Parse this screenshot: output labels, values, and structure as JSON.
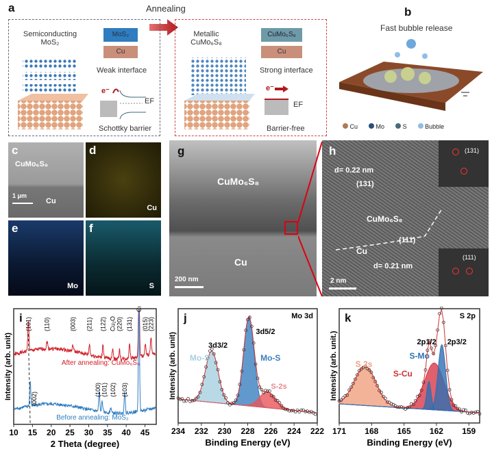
{
  "panel_a": {
    "label": "a",
    "arrow_text": "Annealing",
    "left": {
      "title_line1": "Semiconducting",
      "title_line2": "MoS₂",
      "layer_top": "MoS₂",
      "layer_bottom": "Cu",
      "interface": "Weak interface",
      "electron": "e⁻",
      "fermi": "EF",
      "barrier": "Schottky barrier"
    },
    "right": {
      "title_line1": "Metallic",
      "title_line2": "CuMo₆S₈",
      "layer_top": "CuMo₆S₈",
      "layer_bottom": "Cu",
      "interface": "Strong interface",
      "electron": "e⁻",
      "fermi": "EF",
      "barrier": "Barrier-free"
    },
    "colors": {
      "mos2": "#2f7dc0",
      "cu": "#c98f7a",
      "arrow": "#b0191e"
    }
  },
  "panel_b": {
    "label": "b",
    "title": "Fast bubble release",
    "legend": [
      "Cu",
      "Mo",
      "S",
      "Bubble"
    ]
  },
  "panel_c": {
    "label": "c",
    "text1": "CuMo₆S₈",
    "text2": "Cu",
    "scale": "1 μm"
  },
  "panel_d": {
    "label": "d",
    "element": "Cu"
  },
  "panel_e": {
    "label": "e",
    "element": "Mo"
  },
  "panel_f": {
    "label": "f",
    "element": "S"
  },
  "panel_g": {
    "label": "g",
    "text1": "CuMo₆S₈",
    "text2": "Cu",
    "scale": "200 nm"
  },
  "panel_h": {
    "label": "h",
    "d1": "d= 0.22 nm",
    "plane1": "(131)",
    "phase": "CuMo₆S₈",
    "plane2": "(111)",
    "cu": "Cu",
    "d2": "d= 0.21 nm",
    "fft1": "(131)",
    "fft2": "(111)",
    "scale": "2 nm"
  },
  "chart_data": [
    {
      "panel": "i",
      "type": "line",
      "xlabel": "2 Theta (degree)",
      "ylabel": "Intensity (arb. unit)",
      "xlim": [
        10,
        48
      ],
      "xticks": [
        10,
        15,
        20,
        25,
        30,
        35,
        40,
        45
      ],
      "series": [
        {
          "name": "After annealing: CuMo₆S₈",
          "color": "#d0202a",
          "peaks": [
            [
              13.9,
              1.0
            ],
            [
              18.9,
              0.25
            ],
            [
              25.8,
              0.2
            ],
            [
              30.2,
              0.35
            ],
            [
              33.8,
              0.45
            ],
            [
              36.4,
              0.35
            ],
            [
              38.2,
              0.3
            ],
            [
              40.9,
              0.5
            ],
            [
              43.4,
              2.2
            ],
            [
              45.1,
              0.35
            ],
            [
              46.6,
              0.55
            ]
          ]
        },
        {
          "name": "Before annealing: MoS₂",
          "color": "#2f7dc0",
          "peaks": [
            [
              14.4,
              0.9
            ],
            [
              32.8,
              0.7
            ],
            [
              33.6,
              0.4
            ],
            [
              35.9,
              0.2
            ],
            [
              39.6,
              0.8
            ],
            [
              43.4,
              4.0
            ]
          ]
        }
      ],
      "annotations_after": [
        [
          "(101)",
          13.9
        ],
        [
          "(110)",
          18.9
        ],
        [
          "(003)",
          25.8
        ],
        [
          "(211)",
          30.2
        ],
        [
          "(122)",
          33.8
        ],
        [
          "Cu₂O",
          36.4
        ],
        [
          "(220)",
          38.2
        ],
        [
          "(131)",
          40.9
        ],
        [
          "Cu",
          43.4
        ],
        [
          "(015)",
          45.1
        ],
        [
          "(223)",
          46.6
        ]
      ],
      "annotations_before": [
        [
          "(002)",
          15.5
        ],
        [
          "(100)",
          32.5
        ],
        [
          "(101)",
          34.2
        ],
        [
          "(102)",
          36.5
        ],
        [
          "(103)",
          39.6
        ]
      ]
    },
    {
      "panel": "j",
      "type": "area",
      "title": "Mo 3d",
      "xlabel": "Binding Energy (eV)",
      "ylabel": "Intensity (arb. unit)",
      "xlim": [
        234,
        222
      ],
      "xticks": [
        234,
        232,
        230,
        228,
        226,
        224,
        222
      ],
      "components": [
        {
          "name": "Mo-S",
          "peak_label": "3d3/2",
          "center": 231.1,
          "height": 0.55,
          "width": 0.55,
          "color": "#a8cfe0"
        },
        {
          "name": "Mo-S",
          "peak_label": "3d5/2",
          "center": 227.9,
          "height": 0.95,
          "width": 0.45,
          "color": "#3a7fc0"
        },
        {
          "name": "S-2s",
          "center": 226.3,
          "height": 0.17,
          "width": 0.7,
          "color": "#e8555a"
        }
      ]
    },
    {
      "panel": "k",
      "type": "area",
      "title": "S 2p",
      "xlabel": "Binding Energy (eV)",
      "ylabel": "Intensity (arb. unit.)",
      "xlim": [
        171,
        158
      ],
      "xticks": [
        171,
        168,
        165,
        162,
        159
      ],
      "peak_labels": [
        "2p1/2",
        "2p3/2"
      ],
      "components": [
        {
          "name": "S 2s",
          "center": 168.6,
          "height": 0.42,
          "width": 1.0,
          "color": "#f0a080"
        },
        {
          "name": "S-Cu",
          "center": 162.2,
          "height": 0.5,
          "width": 0.9,
          "color": "#d8384a"
        },
        {
          "name": "S-Mo",
          "center": 161.5,
          "height": 0.7,
          "width": 0.35,
          "color": "#2f6fb0"
        },
        {
          "name": "",
          "center": 162.7,
          "height": 0.3,
          "width": 0.2,
          "color": "#2f6fb0"
        }
      ]
    }
  ]
}
